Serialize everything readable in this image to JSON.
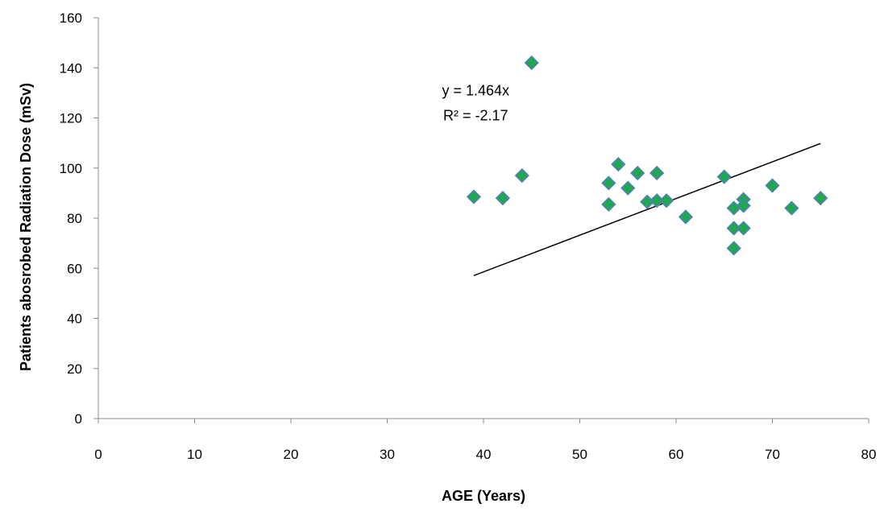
{
  "chart_data": {
    "type": "scatter",
    "title": "",
    "xlabel": "AGE (Years)",
    "ylabel": "Patients abosrobed Radiation Dose (mSv)",
    "xlim": [
      0,
      80
    ],
    "ylim": [
      0,
      160
    ],
    "xticks": [
      0,
      10,
      20,
      30,
      40,
      50,
      60,
      70,
      80
    ],
    "yticks": [
      0,
      20,
      40,
      60,
      80,
      100,
      120,
      140,
      160
    ],
    "grid": false,
    "legend": "none",
    "marker_fill": "#1fa84f",
    "marker_stroke": "#4f7fb8",
    "trendline": {
      "slope": 1.464,
      "x_range": [
        39,
        75
      ],
      "color": "#000000"
    },
    "annotations": [
      {
        "text": "y = 1.464x",
        "x": 35,
        "y": 131
      },
      {
        "text": "R² = -2.17",
        "x": 35,
        "y": 121
      }
    ],
    "points": [
      {
        "x": 39,
        "y": 88.5
      },
      {
        "x": 42,
        "y": 88
      },
      {
        "x": 44,
        "y": 97
      },
      {
        "x": 45,
        "y": 142
      },
      {
        "x": 53,
        "y": 94
      },
      {
        "x": 53,
        "y": 85.5
      },
      {
        "x": 54,
        "y": 101.5
      },
      {
        "x": 55,
        "y": 92
      },
      {
        "x": 56,
        "y": 98
      },
      {
        "x": 57,
        "y": 86.5
      },
      {
        "x": 58,
        "y": 98
      },
      {
        "x": 58,
        "y": 87
      },
      {
        "x": 59,
        "y": 87
      },
      {
        "x": 61,
        "y": 80.5
      },
      {
        "x": 65,
        "y": 96.5
      },
      {
        "x": 66,
        "y": 84
      },
      {
        "x": 66,
        "y": 76
      },
      {
        "x": 66,
        "y": 68
      },
      {
        "x": 67,
        "y": 87.5
      },
      {
        "x": 67,
        "y": 85
      },
      {
        "x": 67,
        "y": 76
      },
      {
        "x": 70,
        "y": 93
      },
      {
        "x": 72,
        "y": 84
      },
      {
        "x": 75,
        "y": 88
      }
    ]
  }
}
